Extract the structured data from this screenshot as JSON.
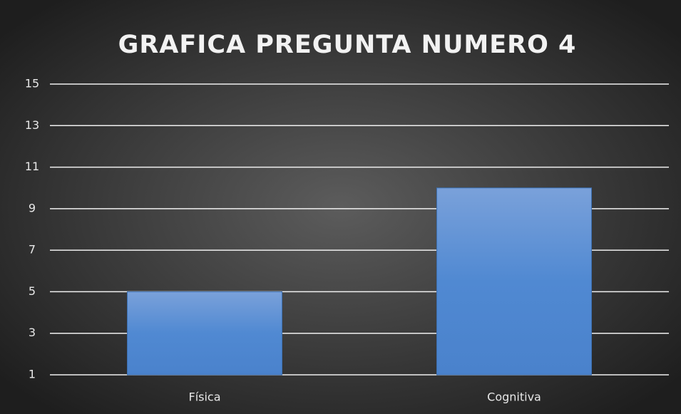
{
  "chart_data": {
    "type": "bar",
    "title": "GRAFICA PREGUNTA NUMERO 4",
    "categories": [
      "Física",
      "Cognitiva"
    ],
    "values": [
      5,
      10
    ],
    "color": "#5089d2",
    "ylim": [
      1,
      15
    ],
    "yticks": [
      1,
      3,
      5,
      7,
      9,
      11,
      13,
      15
    ],
    "grid": true
  }
}
